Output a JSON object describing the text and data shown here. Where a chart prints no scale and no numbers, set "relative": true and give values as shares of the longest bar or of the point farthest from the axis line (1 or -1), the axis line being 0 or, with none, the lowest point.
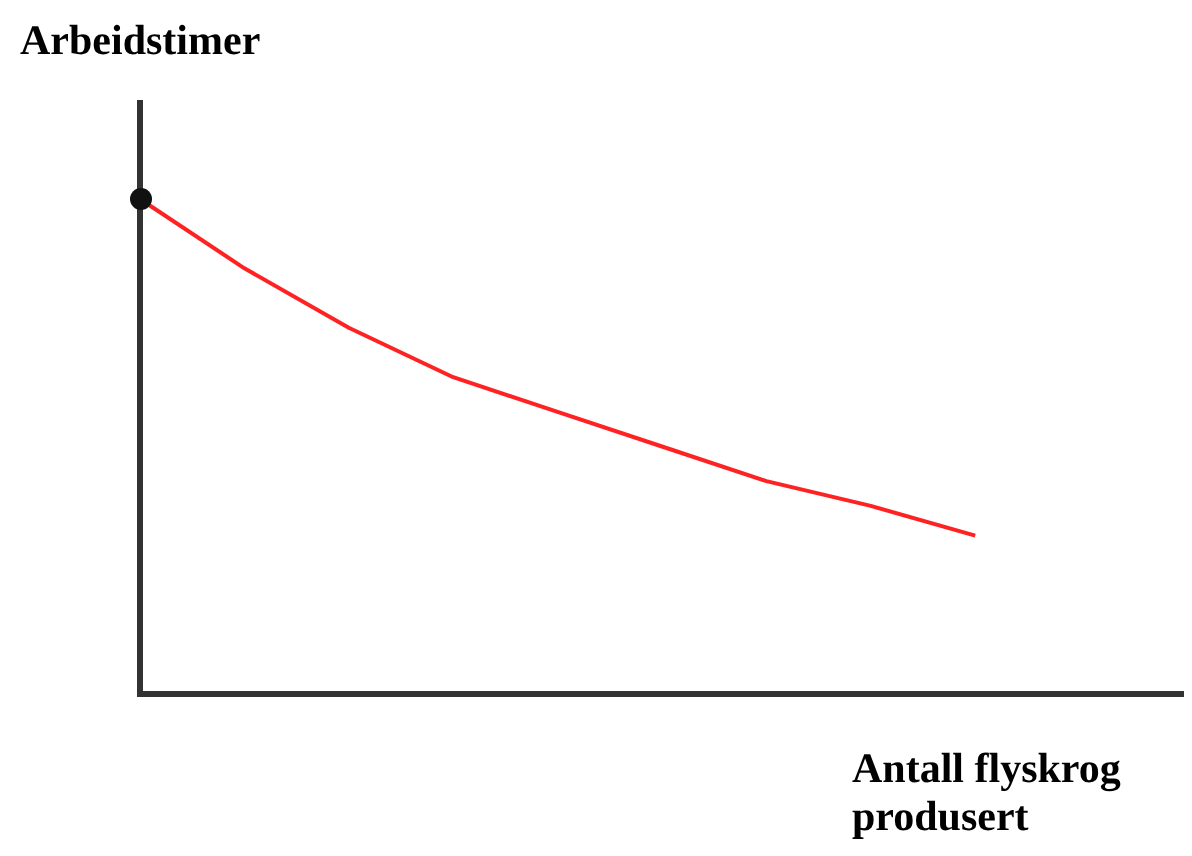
{
  "chart_data": {
    "type": "line",
    "relative": true,
    "xlabel": "Antall flyskrog produsert",
    "ylabel": "Arbeidstimer",
    "categories": [
      null,
      null,
      null,
      null,
      null,
      null,
      null,
      null,
      null,
      null,
      null
    ],
    "series": [
      {
        "color": "#ff2222",
        "values": [
          1.0,
          0.86,
          0.74,
          0.64,
          0.57,
          0.5,
          0.43,
          0.38,
          0.32,
          null,
          null
        ],
        "marker": "none"
      }
    ],
    "legend": false
  }
}
